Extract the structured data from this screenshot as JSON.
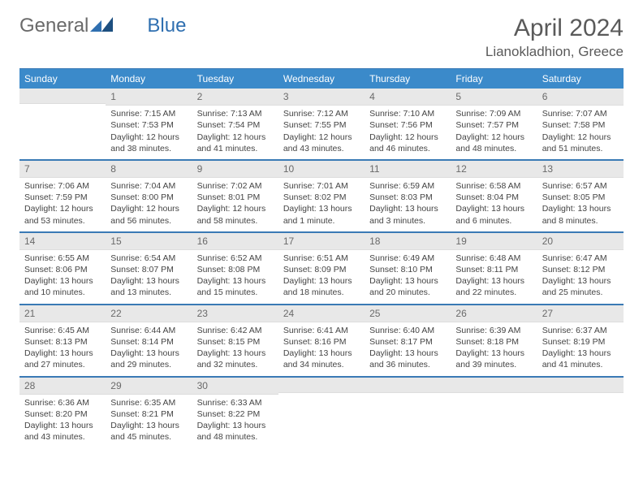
{
  "brand": {
    "part1": "General",
    "part2": "Blue"
  },
  "title": {
    "month": "April 2024",
    "location": "Lianokladhion, Greece"
  },
  "colors": {
    "header_bg": "#3b8aca",
    "divider": "#3a7ab5",
    "daynum_bg": "#e8e8e8",
    "text": "#444444",
    "brand_gray": "#6a6a6a",
    "brand_blue": "#2f6fb0"
  },
  "weekdays": [
    "Sunday",
    "Monday",
    "Tuesday",
    "Wednesday",
    "Thursday",
    "Friday",
    "Saturday"
  ],
  "weeks": [
    [
      {
        "n": "",
        "sunrise": "",
        "sunset": "",
        "daylight": ""
      },
      {
        "n": "1",
        "sunrise": "Sunrise: 7:15 AM",
        "sunset": "Sunset: 7:53 PM",
        "daylight": "Daylight: 12 hours and 38 minutes."
      },
      {
        "n": "2",
        "sunrise": "Sunrise: 7:13 AM",
        "sunset": "Sunset: 7:54 PM",
        "daylight": "Daylight: 12 hours and 41 minutes."
      },
      {
        "n": "3",
        "sunrise": "Sunrise: 7:12 AM",
        "sunset": "Sunset: 7:55 PM",
        "daylight": "Daylight: 12 hours and 43 minutes."
      },
      {
        "n": "4",
        "sunrise": "Sunrise: 7:10 AM",
        "sunset": "Sunset: 7:56 PM",
        "daylight": "Daylight: 12 hours and 46 minutes."
      },
      {
        "n": "5",
        "sunrise": "Sunrise: 7:09 AM",
        "sunset": "Sunset: 7:57 PM",
        "daylight": "Daylight: 12 hours and 48 minutes."
      },
      {
        "n": "6",
        "sunrise": "Sunrise: 7:07 AM",
        "sunset": "Sunset: 7:58 PM",
        "daylight": "Daylight: 12 hours and 51 minutes."
      }
    ],
    [
      {
        "n": "7",
        "sunrise": "Sunrise: 7:06 AM",
        "sunset": "Sunset: 7:59 PM",
        "daylight": "Daylight: 12 hours and 53 minutes."
      },
      {
        "n": "8",
        "sunrise": "Sunrise: 7:04 AM",
        "sunset": "Sunset: 8:00 PM",
        "daylight": "Daylight: 12 hours and 56 minutes."
      },
      {
        "n": "9",
        "sunrise": "Sunrise: 7:02 AM",
        "sunset": "Sunset: 8:01 PM",
        "daylight": "Daylight: 12 hours and 58 minutes."
      },
      {
        "n": "10",
        "sunrise": "Sunrise: 7:01 AM",
        "sunset": "Sunset: 8:02 PM",
        "daylight": "Daylight: 13 hours and 1 minute."
      },
      {
        "n": "11",
        "sunrise": "Sunrise: 6:59 AM",
        "sunset": "Sunset: 8:03 PM",
        "daylight": "Daylight: 13 hours and 3 minutes."
      },
      {
        "n": "12",
        "sunrise": "Sunrise: 6:58 AM",
        "sunset": "Sunset: 8:04 PM",
        "daylight": "Daylight: 13 hours and 6 minutes."
      },
      {
        "n": "13",
        "sunrise": "Sunrise: 6:57 AM",
        "sunset": "Sunset: 8:05 PM",
        "daylight": "Daylight: 13 hours and 8 minutes."
      }
    ],
    [
      {
        "n": "14",
        "sunrise": "Sunrise: 6:55 AM",
        "sunset": "Sunset: 8:06 PM",
        "daylight": "Daylight: 13 hours and 10 minutes."
      },
      {
        "n": "15",
        "sunrise": "Sunrise: 6:54 AM",
        "sunset": "Sunset: 8:07 PM",
        "daylight": "Daylight: 13 hours and 13 minutes."
      },
      {
        "n": "16",
        "sunrise": "Sunrise: 6:52 AM",
        "sunset": "Sunset: 8:08 PM",
        "daylight": "Daylight: 13 hours and 15 minutes."
      },
      {
        "n": "17",
        "sunrise": "Sunrise: 6:51 AM",
        "sunset": "Sunset: 8:09 PM",
        "daylight": "Daylight: 13 hours and 18 minutes."
      },
      {
        "n": "18",
        "sunrise": "Sunrise: 6:49 AM",
        "sunset": "Sunset: 8:10 PM",
        "daylight": "Daylight: 13 hours and 20 minutes."
      },
      {
        "n": "19",
        "sunrise": "Sunrise: 6:48 AM",
        "sunset": "Sunset: 8:11 PM",
        "daylight": "Daylight: 13 hours and 22 minutes."
      },
      {
        "n": "20",
        "sunrise": "Sunrise: 6:47 AM",
        "sunset": "Sunset: 8:12 PM",
        "daylight": "Daylight: 13 hours and 25 minutes."
      }
    ],
    [
      {
        "n": "21",
        "sunrise": "Sunrise: 6:45 AM",
        "sunset": "Sunset: 8:13 PM",
        "daylight": "Daylight: 13 hours and 27 minutes."
      },
      {
        "n": "22",
        "sunrise": "Sunrise: 6:44 AM",
        "sunset": "Sunset: 8:14 PM",
        "daylight": "Daylight: 13 hours and 29 minutes."
      },
      {
        "n": "23",
        "sunrise": "Sunrise: 6:42 AM",
        "sunset": "Sunset: 8:15 PM",
        "daylight": "Daylight: 13 hours and 32 minutes."
      },
      {
        "n": "24",
        "sunrise": "Sunrise: 6:41 AM",
        "sunset": "Sunset: 8:16 PM",
        "daylight": "Daylight: 13 hours and 34 minutes."
      },
      {
        "n": "25",
        "sunrise": "Sunrise: 6:40 AM",
        "sunset": "Sunset: 8:17 PM",
        "daylight": "Daylight: 13 hours and 36 minutes."
      },
      {
        "n": "26",
        "sunrise": "Sunrise: 6:39 AM",
        "sunset": "Sunset: 8:18 PM",
        "daylight": "Daylight: 13 hours and 39 minutes."
      },
      {
        "n": "27",
        "sunrise": "Sunrise: 6:37 AM",
        "sunset": "Sunset: 8:19 PM",
        "daylight": "Daylight: 13 hours and 41 minutes."
      }
    ],
    [
      {
        "n": "28",
        "sunrise": "Sunrise: 6:36 AM",
        "sunset": "Sunset: 8:20 PM",
        "daylight": "Daylight: 13 hours and 43 minutes."
      },
      {
        "n": "29",
        "sunrise": "Sunrise: 6:35 AM",
        "sunset": "Sunset: 8:21 PM",
        "daylight": "Daylight: 13 hours and 45 minutes."
      },
      {
        "n": "30",
        "sunrise": "Sunrise: 6:33 AM",
        "sunset": "Sunset: 8:22 PM",
        "daylight": "Daylight: 13 hours and 48 minutes."
      },
      {
        "n": "",
        "sunrise": "",
        "sunset": "",
        "daylight": ""
      },
      {
        "n": "",
        "sunrise": "",
        "sunset": "",
        "daylight": ""
      },
      {
        "n": "",
        "sunrise": "",
        "sunset": "",
        "daylight": ""
      },
      {
        "n": "",
        "sunrise": "",
        "sunset": "",
        "daylight": ""
      }
    ]
  ]
}
